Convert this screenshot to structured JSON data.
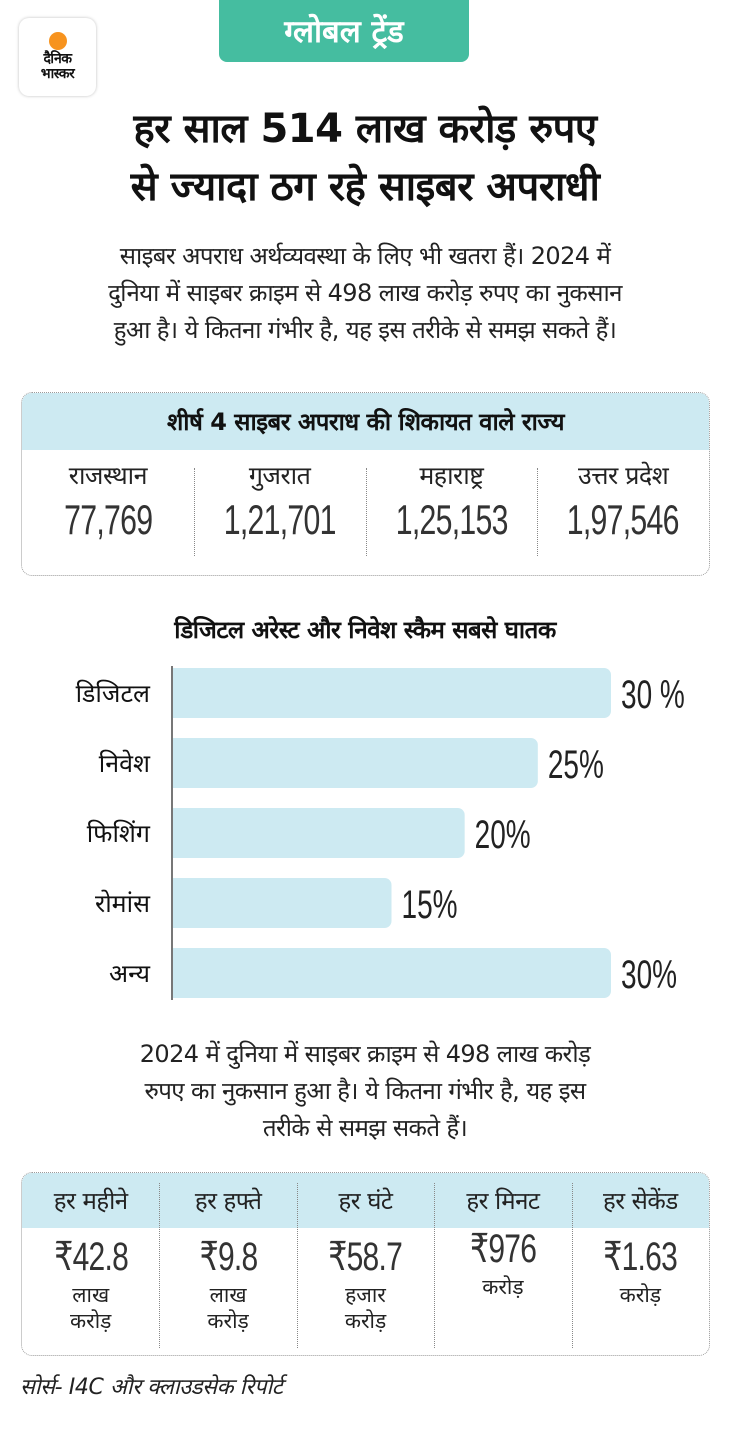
{
  "logo": {
    "line1": "दैनिक",
    "line2": "भास्कर",
    "sun_color": "#f7931e"
  },
  "tag": {
    "label": "ग्लोबल ट्रेंड",
    "color": "#45bda0"
  },
  "headline": {
    "line1": "हर साल 514 लाख करोड़ रुपए",
    "line2": "से ज्यादा ठग रहे साइबर अपराधी"
  },
  "intro": {
    "line1": "साइबर अपराध अर्थव्यवस्था के लिए भी खतरा हैं। 2024 में",
    "line2": "दुनिया में साइबर क्राइम से 498 लाख करोड़ रुपए का नुकसान",
    "line3": "हुआ है। ये कितना गंभीर है, यह इस तरीके से समझ सकते हैं।"
  },
  "states": {
    "title": "शीर्ष 4 साइबर अपराध की शिकायत वाले राज्य",
    "items": [
      {
        "name": "राजस्थान",
        "value": "77,769"
      },
      {
        "name": "गुजरात",
        "value": "1,21,701"
      },
      {
        "name": "महाराष्ट्र",
        "value": "1,25,153"
      },
      {
        "name": "उत्तर प्रदेश",
        "value": "1,97,546"
      }
    ]
  },
  "chart_data": {
    "type": "bar",
    "orientation": "horizontal",
    "title": "डिजिटल अरेस्ट और निवेश स्कैम सबसे घातक",
    "categories": [
      "डिजिटल",
      "निवेश",
      "फिशिंग",
      "रोमांस",
      "अन्य"
    ],
    "values": [
      30,
      25,
      20,
      15,
      30
    ],
    "labels": [
      "30 %",
      "25%",
      "20%",
      "15%",
      "30%"
    ],
    "unit": "%",
    "xlim": [
      0,
      30
    ],
    "bar_color": "#cdeaf2",
    "axis_color": "#777777",
    "grid": false
  },
  "summary": {
    "line1": "2024 में दुनिया में साइबर क्राइम से 498 लाख करोड़",
    "line2": "रुपए का नुकसान हुआ है। ये कितना गंभीर है, यह इस",
    "line3": "तरीके से समझ सकते हैं।"
  },
  "rates": [
    {
      "period": "हर महीने",
      "value": "₹42.8",
      "unit1": "लाख",
      "unit2": "करोड़"
    },
    {
      "period": "हर हफ्ते",
      "value": "₹9.8",
      "unit1": "लाख",
      "unit2": "करोड़"
    },
    {
      "period": "हर घंटे",
      "value": "₹58.7",
      "unit1": "हजार",
      "unit2": "करोड़"
    },
    {
      "period": "हर मिनट",
      "value": "₹976",
      "unit1": "करोड़",
      "unit2": ""
    },
    {
      "period": "हर सेकेंड",
      "value": "₹1.63",
      "unit1": "करोड़",
      "unit2": ""
    }
  ],
  "source": "सोर्स- I4C और क्लाउडसेक रिपोर्ट",
  "colors": {
    "header_bg": "#cdeaf2",
    "border": "#9a9a9a"
  }
}
